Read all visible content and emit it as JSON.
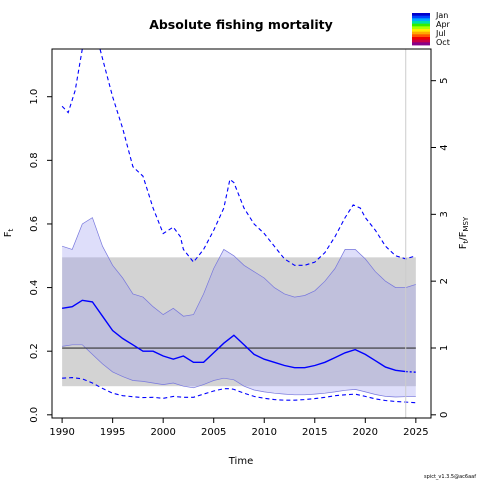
{
  "chart_data": {
    "type": "line",
    "title": "Absolute fishing mortality",
    "xlabel": "Time",
    "ylabel": "F",
    "ylabel_sub": "t",
    "ylabel2": "F",
    "ylabel2_sub1": "t",
    "ylabel2_sep": "/",
    "ylabel2_sub2": "MSY",
    "footer": "spict_v1.3.5@ac6aaf",
    "xlim": [
      1989,
      2026.5
    ],
    "ylim": [
      -0.01,
      1.15
    ],
    "y2_per_y": 4.76,
    "x_ticks": [
      1990,
      1995,
      2000,
      2005,
      2010,
      2015,
      2020,
      2025
    ],
    "y_ticks": [
      0.0,
      0.2,
      0.4,
      0.6,
      0.8,
      1.0
    ],
    "y2_ticks": [
      0,
      1,
      2,
      3,
      4,
      5
    ],
    "fmsy": 0.21,
    "fmsy_ci": [
      0.09,
      0.495
    ],
    "fmsy_ci_x": [
      1990,
      2025
    ],
    "vertical_line_x": 2024,
    "colors": {
      "estimate": "#0000ff",
      "ci_fill": "#9999ee",
      "ci_border": "#7777dd",
      "fmsy_band": "#d3d3d3",
      "fmsy_line": "#333333",
      "vline": "#cccccc"
    },
    "series": [
      {
        "role": "estimate",
        "x": [
          1990,
          1991,
          1992,
          1993,
          1994,
          1995,
          1996,
          1997,
          1998,
          1999,
          2000,
          2001,
          2002,
          2003,
          2004,
          2005,
          2006,
          2007,
          2008,
          2009,
          2010,
          2011,
          2012,
          2013,
          2014,
          2015,
          2016,
          2017,
          2018,
          2019,
          2020,
          2021,
          2022,
          2023,
          2024
        ],
        "y": [
          0.335,
          0.34,
          0.36,
          0.355,
          0.31,
          0.265,
          0.24,
          0.22,
          0.2,
          0.2,
          0.185,
          0.175,
          0.185,
          0.165,
          0.165,
          0.195,
          0.225,
          0.25,
          0.22,
          0.19,
          0.175,
          0.165,
          0.155,
          0.148,
          0.148,
          0.155,
          0.165,
          0.18,
          0.195,
          0.205,
          0.19,
          0.17,
          0.15,
          0.14,
          0.136
        ]
      },
      {
        "role": "estimate_projection",
        "x": [
          2024,
          2025
        ],
        "y": [
          0.136,
          0.134
        ]
      },
      {
        "role": "ci_upper",
        "x": [
          1990,
          1991,
          1992,
          1993,
          1994,
          1995,
          1996,
          1997,
          1998,
          1999,
          2000,
          2001,
          2002,
          2003,
          2004,
          2005,
          2006,
          2007,
          2008,
          2009,
          2010,
          2011,
          2012,
          2013,
          2014,
          2015,
          2016,
          2017,
          2018,
          2019,
          2020,
          2021,
          2022,
          2023,
          2024,
          2025
        ],
        "y": [
          0.53,
          0.52,
          0.6,
          0.62,
          0.53,
          0.47,
          0.43,
          0.38,
          0.37,
          0.34,
          0.315,
          0.335,
          0.31,
          0.315,
          0.38,
          0.46,
          0.52,
          0.5,
          0.47,
          0.45,
          0.43,
          0.4,
          0.38,
          0.37,
          0.375,
          0.39,
          0.42,
          0.46,
          0.52,
          0.52,
          0.49,
          0.45,
          0.42,
          0.4,
          0.4,
          0.41
        ]
      },
      {
        "role": "ci_lower",
        "x": [
          1990,
          1991,
          1992,
          1993,
          1994,
          1995,
          1996,
          1997,
          1998,
          1999,
          2000,
          2001,
          2002,
          2003,
          2004,
          2005,
          2006,
          2007,
          2008,
          2009,
          2010,
          2011,
          2012,
          2013,
          2014,
          2015,
          2016,
          2017,
          2018,
          2019,
          2020,
          2021,
          2022,
          2023,
          2024,
          2025
        ],
        "y": [
          0.215,
          0.22,
          0.22,
          0.19,
          0.16,
          0.135,
          0.12,
          0.108,
          0.105,
          0.1,
          0.095,
          0.1,
          0.09,
          0.085,
          0.095,
          0.108,
          0.115,
          0.11,
          0.09,
          0.078,
          0.072,
          0.068,
          0.065,
          0.063,
          0.063,
          0.065,
          0.068,
          0.072,
          0.077,
          0.08,
          0.072,
          0.064,
          0.058,
          0.056,
          0.057,
          0.057
        ]
      },
      {
        "role": "pred_upper",
        "x": [
          1990,
          1990.6,
          1991.3,
          1992,
          1992.5,
          1993,
          1993.5,
          1994,
          1995,
          1996,
          1997,
          1998,
          1999,
          2000,
          2001,
          2001.7,
          2002,
          2003,
          2004,
          2005,
          2006,
          2006.6,
          2007,
          2008,
          2009,
          2010,
          2011,
          2012,
          2013,
          2014,
          2015,
          2016,
          2017,
          2018,
          2018.8,
          2019.5,
          2020,
          2021,
          2022,
          2023,
          2024,
          2025
        ],
        "y": [
          0.97,
          0.95,
          1.02,
          1.15,
          1.19,
          1.2,
          1.18,
          1.12,
          1.0,
          0.9,
          0.78,
          0.75,
          0.65,
          0.57,
          0.59,
          0.56,
          0.52,
          0.48,
          0.52,
          0.58,
          0.65,
          0.74,
          0.73,
          0.65,
          0.6,
          0.57,
          0.53,
          0.49,
          0.47,
          0.47,
          0.48,
          0.51,
          0.56,
          0.62,
          0.66,
          0.65,
          0.62,
          0.58,
          0.53,
          0.5,
          0.49,
          0.5
        ]
      },
      {
        "role": "pred_lower",
        "x": [
          1990,
          1991,
          1992,
          1993,
          1994,
          1995,
          1996,
          1997,
          1998,
          1999,
          2000,
          2001,
          2002,
          2003,
          2004,
          2005,
          2006,
          2006.7,
          2007,
          2008,
          2009,
          2010,
          2011,
          2012,
          2013,
          2014,
          2015,
          2016,
          2017,
          2018,
          2019,
          2020,
          2021,
          2022,
          2023,
          2024,
          2025
        ],
        "y": [
          0.115,
          0.117,
          0.113,
          0.1,
          0.083,
          0.068,
          0.06,
          0.057,
          0.054,
          0.055,
          0.052,
          0.058,
          0.055,
          0.055,
          0.065,
          0.075,
          0.082,
          0.082,
          0.08,
          0.068,
          0.058,
          0.052,
          0.048,
          0.046,
          0.046,
          0.048,
          0.051,
          0.055,
          0.06,
          0.063,
          0.065,
          0.058,
          0.05,
          0.045,
          0.042,
          0.04,
          0.038
        ]
      }
    ],
    "legend": {
      "title": "",
      "labels": [
        "Jan",
        "Apr",
        "Jul",
        "Oct"
      ],
      "swatches": [
        "#0000cc",
        "#0044ff",
        "#00aaff",
        "#00ddaa",
        "#33ee00",
        "#aaff00",
        "#ffee00",
        "#ffaa00",
        "#ff5500",
        "#ee0000",
        "#cc0044",
        "#880088"
      ]
    }
  }
}
